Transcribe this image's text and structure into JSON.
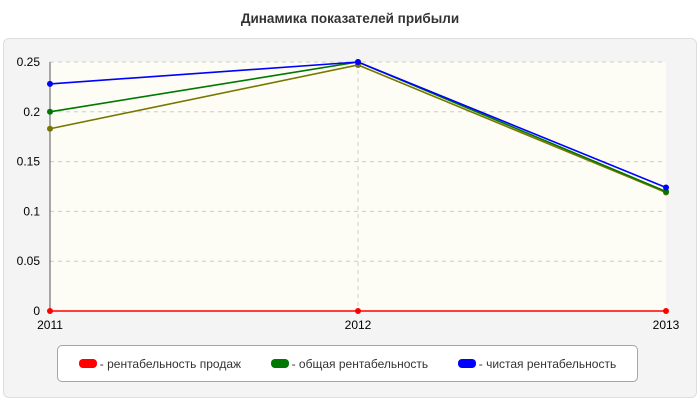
{
  "chart_data": {
    "type": "line",
    "title": "Динамика показателей прибыли",
    "x": [
      "2011",
      "2012",
      "2013"
    ],
    "ylim": [
      0,
      0.25
    ],
    "yticks": [
      "0",
      "0.05",
      "0.1",
      "0.15",
      "0.2",
      "0.25"
    ],
    "grid": true,
    "legend_position": "bottom",
    "series": [
      {
        "name": "- рентабельность продаж",
        "color": "#ff0000",
        "values": [
          0,
          0,
          0
        ]
      },
      {
        "name": "- общая рентабельность",
        "color": "#007700",
        "values": [
          0.2,
          0.25,
          0.12
        ]
      },
      {
        "name": "- чистая рентабельность",
        "color": "#0000ff",
        "values": [
          0.228,
          0.25,
          0.124
        ]
      },
      {
        "color": "#777700",
        "values": [
          0.183,
          0.247,
          0.119
        ]
      }
    ]
  }
}
